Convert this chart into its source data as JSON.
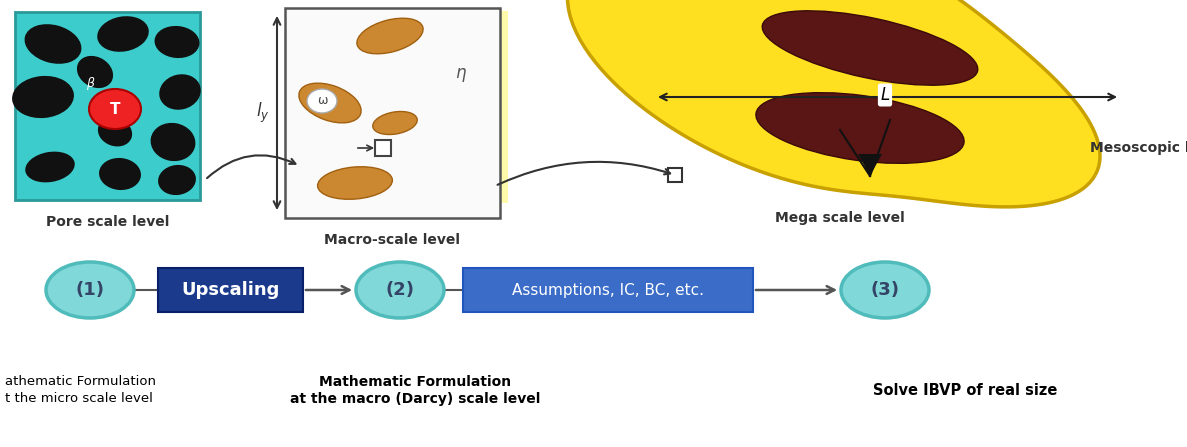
{
  "bg_color": "#ffffff",
  "teal_color": "#3DCCCC",
  "dark_blue_box": "#1B3A8C",
  "mid_blue_box": "#3A6CC8",
  "cyan_ellipse": "#80D8D8",
  "pore_scale_label": "Pore scale level",
  "macro_scale_label": "Macro-scale level",
  "mega_scale_label": "Mega scale level",
  "mesoscopic_label": "Mesoscopic level",
  "upscaling_label": "Upscaling",
  "assumptions_label": "Assumptions, IC, BC, etc.",
  "node1_label": "(1)",
  "node2_label": "(2)",
  "node3_label": "(3)",
  "text1_line1": "athematic Formulation",
  "text1_line2": "t the micro scale level",
  "text2_line1": "Mathematic Formulation",
  "text2_line2": "at the macro (Darcy) scale level",
  "text3_line1": "Solve IBVP of real size",
  "orange_blob": "#CC7722",
  "dark_brown": "#5A1515",
  "figsize": [
    11.87,
    4.47
  ],
  "dpi": 100
}
